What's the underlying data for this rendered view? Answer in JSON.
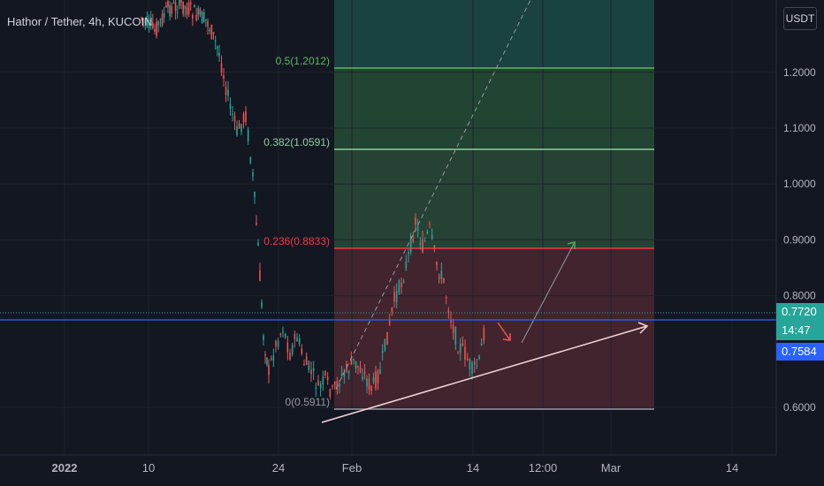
{
  "header": {
    "symbol": "Hathor / Tether, 4h, KUCOIN"
  },
  "price_axis": {
    "currency": "USDT",
    "ticks": [
      "1.2000",
      "1.1000",
      "1.0000",
      "0.9000",
      "0.8000",
      "0.6000"
    ],
    "current_price": "0.7720",
    "countdown": "14:47",
    "line_price": "0.7584"
  },
  "time_axis": {
    "labels": [
      "2022",
      "10",
      "24",
      "Feb",
      "14",
      "12:00",
      "Mar",
      "14"
    ]
  },
  "fib_levels": [
    {
      "label": "0.5(1.2012)",
      "price": 1.2012,
      "color": "#5cb85c"
    },
    {
      "label": "0.382(1.0591)",
      "price": 1.0591,
      "color": "#8fce9c"
    },
    {
      "label": "0.236(0.8833)",
      "price": 0.8833,
      "color": "#f23645"
    },
    {
      "label": "0(0.5911)",
      "price": 0.5911,
      "color": "#9598a1"
    }
  ],
  "colors": {
    "up": "#26a69a",
    "down": "#ef5350",
    "line": "#2962ff",
    "bg": "#131722"
  }
}
